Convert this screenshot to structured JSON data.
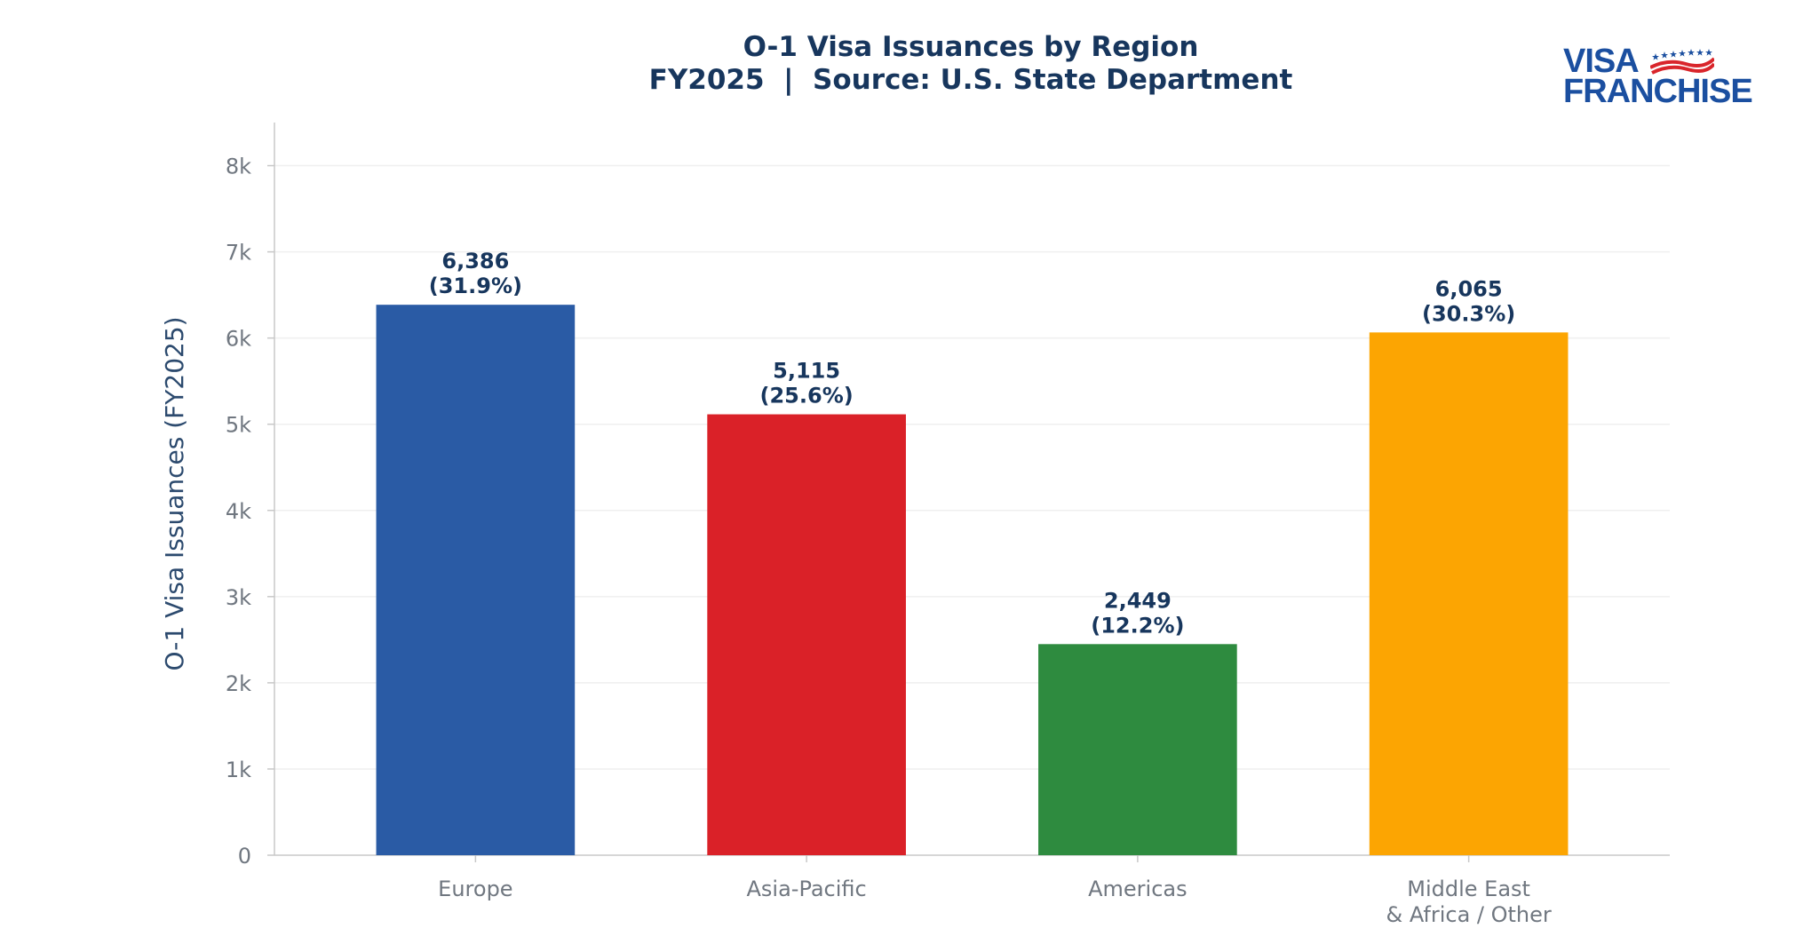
{
  "colors": {
    "title": "#17365d",
    "tick": "#707780",
    "axis": "#c8c8c8",
    "grid": "#efefef",
    "label": "#17365d",
    "ylabel": "#2c4a6e"
  },
  "logo": {
    "line1": "VISA",
    "line2": "FRANCHISE",
    "colors": [
      "#1b4fa0",
      "#d9252b"
    ]
  },
  "chart_data": {
    "type": "bar",
    "title": "O-1 Visa Issuances by Region",
    "subtitle": "FY2025  |  Source: U.S. State Department",
    "xlabel": "",
    "ylabel": "O-1 Visa Issuances (FY2025)",
    "categories": [
      [
        "Europe"
      ],
      [
        "Asia-Pacific"
      ],
      [
        "Americas"
      ],
      [
        "Middle East",
        "& Africa / Other"
      ]
    ],
    "values": [
      6386,
      5115,
      2449,
      6065
    ],
    "value_labels": [
      "6,386",
      "5,115",
      "2,449",
      "6,065"
    ],
    "pct_labels": [
      "(31.9%)",
      "(25.6%)",
      "(12.2%)",
      "(30.3%)"
    ],
    "bar_colors": [
      "#2a5ba5",
      "#da2128",
      "#2e8b3f",
      "#fca502"
    ],
    "ylim": [
      0,
      8500
    ],
    "yticks": [
      0,
      1000,
      2000,
      3000,
      4000,
      5000,
      6000,
      7000,
      8000
    ],
    "ytick_labels": [
      "0",
      "1k",
      "2k",
      "3k",
      "4k",
      "5k",
      "6k",
      "7k",
      "8k"
    ],
    "grid": true,
    "legend": "none"
  }
}
